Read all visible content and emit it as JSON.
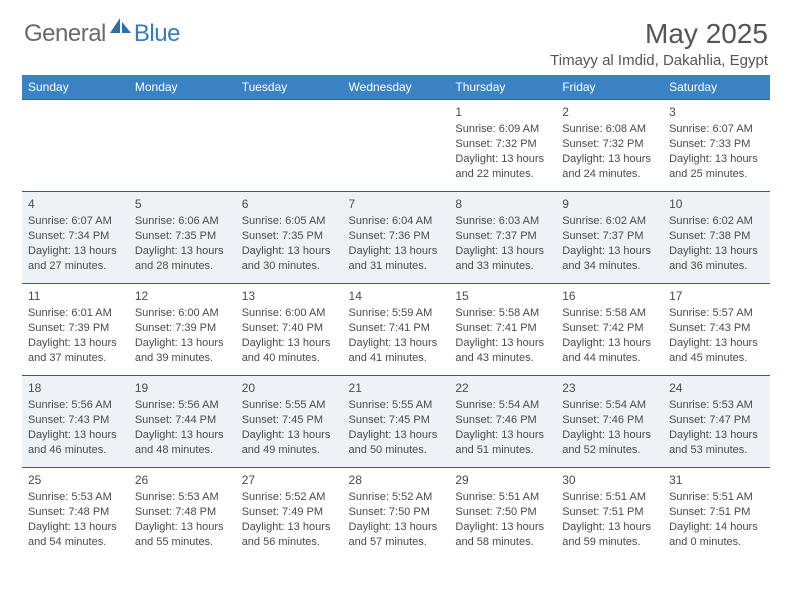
{
  "brand": {
    "general": "General",
    "blue": "Blue"
  },
  "title": {
    "month": "May 2025",
    "location": "Timayy al Imdid, Dakahlia, Egypt"
  },
  "colors": {
    "header_bg": "#3a82c4",
    "header_text": "#ffffff",
    "row_border": "#2b5f8f",
    "alt_row_bg": "#eef2f5",
    "text": "#4a4a4a",
    "brand_gray": "#6a6a6a",
    "brand_blue": "#3a7ab8"
  },
  "typography": {
    "body_fontsize": 11,
    "header_fontsize": 12,
    "title_fontsize": 28,
    "location_fontsize": 15
  },
  "day_names": [
    "Sunday",
    "Monday",
    "Tuesday",
    "Wednesday",
    "Thursday",
    "Friday",
    "Saturday"
  ],
  "weeks": [
    [
      null,
      null,
      null,
      null,
      {
        "n": "1",
        "sr": "Sunrise: 6:09 AM",
        "ss": "Sunset: 7:32 PM",
        "dl": "Daylight: 13 hours and 22 minutes."
      },
      {
        "n": "2",
        "sr": "Sunrise: 6:08 AM",
        "ss": "Sunset: 7:32 PM",
        "dl": "Daylight: 13 hours and 24 minutes."
      },
      {
        "n": "3",
        "sr": "Sunrise: 6:07 AM",
        "ss": "Sunset: 7:33 PM",
        "dl": "Daylight: 13 hours and 25 minutes."
      }
    ],
    [
      {
        "n": "4",
        "sr": "Sunrise: 6:07 AM",
        "ss": "Sunset: 7:34 PM",
        "dl": "Daylight: 13 hours and 27 minutes."
      },
      {
        "n": "5",
        "sr": "Sunrise: 6:06 AM",
        "ss": "Sunset: 7:35 PM",
        "dl": "Daylight: 13 hours and 28 minutes."
      },
      {
        "n": "6",
        "sr": "Sunrise: 6:05 AM",
        "ss": "Sunset: 7:35 PM",
        "dl": "Daylight: 13 hours and 30 minutes."
      },
      {
        "n": "7",
        "sr": "Sunrise: 6:04 AM",
        "ss": "Sunset: 7:36 PM",
        "dl": "Daylight: 13 hours and 31 minutes."
      },
      {
        "n": "8",
        "sr": "Sunrise: 6:03 AM",
        "ss": "Sunset: 7:37 PM",
        "dl": "Daylight: 13 hours and 33 minutes."
      },
      {
        "n": "9",
        "sr": "Sunrise: 6:02 AM",
        "ss": "Sunset: 7:37 PM",
        "dl": "Daylight: 13 hours and 34 minutes."
      },
      {
        "n": "10",
        "sr": "Sunrise: 6:02 AM",
        "ss": "Sunset: 7:38 PM",
        "dl": "Daylight: 13 hours and 36 minutes."
      }
    ],
    [
      {
        "n": "11",
        "sr": "Sunrise: 6:01 AM",
        "ss": "Sunset: 7:39 PM",
        "dl": "Daylight: 13 hours and 37 minutes."
      },
      {
        "n": "12",
        "sr": "Sunrise: 6:00 AM",
        "ss": "Sunset: 7:39 PM",
        "dl": "Daylight: 13 hours and 39 minutes."
      },
      {
        "n": "13",
        "sr": "Sunrise: 6:00 AM",
        "ss": "Sunset: 7:40 PM",
        "dl": "Daylight: 13 hours and 40 minutes."
      },
      {
        "n": "14",
        "sr": "Sunrise: 5:59 AM",
        "ss": "Sunset: 7:41 PM",
        "dl": "Daylight: 13 hours and 41 minutes."
      },
      {
        "n": "15",
        "sr": "Sunrise: 5:58 AM",
        "ss": "Sunset: 7:41 PM",
        "dl": "Daylight: 13 hours and 43 minutes."
      },
      {
        "n": "16",
        "sr": "Sunrise: 5:58 AM",
        "ss": "Sunset: 7:42 PM",
        "dl": "Daylight: 13 hours and 44 minutes."
      },
      {
        "n": "17",
        "sr": "Sunrise: 5:57 AM",
        "ss": "Sunset: 7:43 PM",
        "dl": "Daylight: 13 hours and 45 minutes."
      }
    ],
    [
      {
        "n": "18",
        "sr": "Sunrise: 5:56 AM",
        "ss": "Sunset: 7:43 PM",
        "dl": "Daylight: 13 hours and 46 minutes."
      },
      {
        "n": "19",
        "sr": "Sunrise: 5:56 AM",
        "ss": "Sunset: 7:44 PM",
        "dl": "Daylight: 13 hours and 48 minutes."
      },
      {
        "n": "20",
        "sr": "Sunrise: 5:55 AM",
        "ss": "Sunset: 7:45 PM",
        "dl": "Daylight: 13 hours and 49 minutes."
      },
      {
        "n": "21",
        "sr": "Sunrise: 5:55 AM",
        "ss": "Sunset: 7:45 PM",
        "dl": "Daylight: 13 hours and 50 minutes."
      },
      {
        "n": "22",
        "sr": "Sunrise: 5:54 AM",
        "ss": "Sunset: 7:46 PM",
        "dl": "Daylight: 13 hours and 51 minutes."
      },
      {
        "n": "23",
        "sr": "Sunrise: 5:54 AM",
        "ss": "Sunset: 7:46 PM",
        "dl": "Daylight: 13 hours and 52 minutes."
      },
      {
        "n": "24",
        "sr": "Sunrise: 5:53 AM",
        "ss": "Sunset: 7:47 PM",
        "dl": "Daylight: 13 hours and 53 minutes."
      }
    ],
    [
      {
        "n": "25",
        "sr": "Sunrise: 5:53 AM",
        "ss": "Sunset: 7:48 PM",
        "dl": "Daylight: 13 hours and 54 minutes."
      },
      {
        "n": "26",
        "sr": "Sunrise: 5:53 AM",
        "ss": "Sunset: 7:48 PM",
        "dl": "Daylight: 13 hours and 55 minutes."
      },
      {
        "n": "27",
        "sr": "Sunrise: 5:52 AM",
        "ss": "Sunset: 7:49 PM",
        "dl": "Daylight: 13 hours and 56 minutes."
      },
      {
        "n": "28",
        "sr": "Sunrise: 5:52 AM",
        "ss": "Sunset: 7:50 PM",
        "dl": "Daylight: 13 hours and 57 minutes."
      },
      {
        "n": "29",
        "sr": "Sunrise: 5:51 AM",
        "ss": "Sunset: 7:50 PM",
        "dl": "Daylight: 13 hours and 58 minutes."
      },
      {
        "n": "30",
        "sr": "Sunrise: 5:51 AM",
        "ss": "Sunset: 7:51 PM",
        "dl": "Daylight: 13 hours and 59 minutes."
      },
      {
        "n": "31",
        "sr": "Sunrise: 5:51 AM",
        "ss": "Sunset: 7:51 PM",
        "dl": "Daylight: 14 hours and 0 minutes."
      }
    ]
  ]
}
